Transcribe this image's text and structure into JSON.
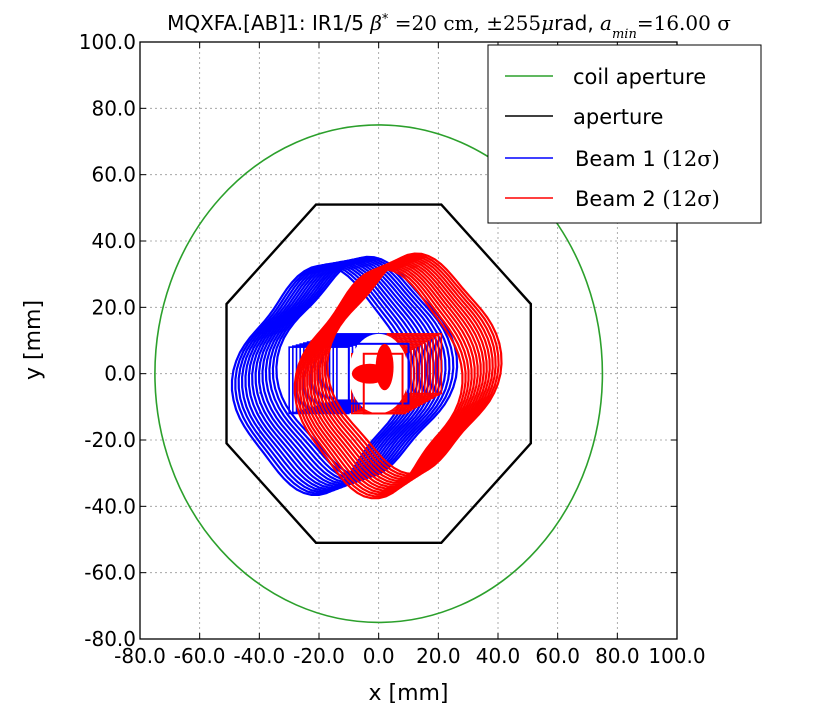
{
  "chart_data": {
    "type": "line",
    "title": "MQXFA.[AB]1: IR1/5 β* =20 cm, ±255μrad, a_min=16.00 σ",
    "title_parts": {
      "prefix": "MQXFA.[AB]1: IR1/5 ",
      "beta": "β",
      "beta_sup": "*",
      "beta_val": " =20 cm, ",
      "xing": "±255",
      "mu": "μ",
      "rad": "rad, ",
      "amin": "a",
      "amin_sub": "min",
      "amin_val": "=16.00 σ"
    },
    "xlabel": "x [mm]",
    "ylabel": "y [mm]",
    "xlim": [
      -80,
      100
    ],
    "ylim": [
      -80,
      100
    ],
    "xticks": [
      -80,
      -60,
      -40,
      -20,
      0,
      20,
      40,
      60,
      80,
      100
    ],
    "yticks": [
      -80,
      -60,
      -40,
      -20,
      0,
      20,
      40,
      60,
      80,
      100
    ],
    "tick_format_decimals": 1,
    "grid": true,
    "legend_position": "top-right",
    "coil_aperture": {
      "shape": "circle",
      "center": [
        0,
        0
      ],
      "radius": 75
    },
    "aperture": {
      "shape": "octagon",
      "x": [
        -21,
        21,
        51,
        51,
        21,
        -21,
        -51,
        -51
      ],
      "y": [
        51,
        51,
        21,
        -21,
        -51,
        -51,
        -21,
        21
      ]
    },
    "beam1": {
      "contours": 14,
      "center_offset": [
        -12,
        0
      ],
      "center_spread": [
        8,
        2
      ],
      "envelope_half_width": 27,
      "envelope_half_height": 32,
      "inner_box_half": 10
    },
    "beam2": {
      "contours": 14,
      "center_offset": [
        6,
        0
      ],
      "center_spread": [
        6,
        3
      ],
      "envelope_half_width": 26,
      "envelope_half_height": 32,
      "inner_box_half": 9
    },
    "series": [
      {
        "name": "coil aperture",
        "color": "#2ca02c"
      },
      {
        "name": "aperture",
        "color": "#000000"
      },
      {
        "name": "Beam 1 (12σ)",
        "color": "#0000ff",
        "label_main": "Beam 1 ",
        "label_math": "(12σ)"
      },
      {
        "name": "Beam 2 (12σ)",
        "color": "#ff0000",
        "label_main": "Beam 2 ",
        "label_math": "(12σ)"
      }
    ]
  }
}
